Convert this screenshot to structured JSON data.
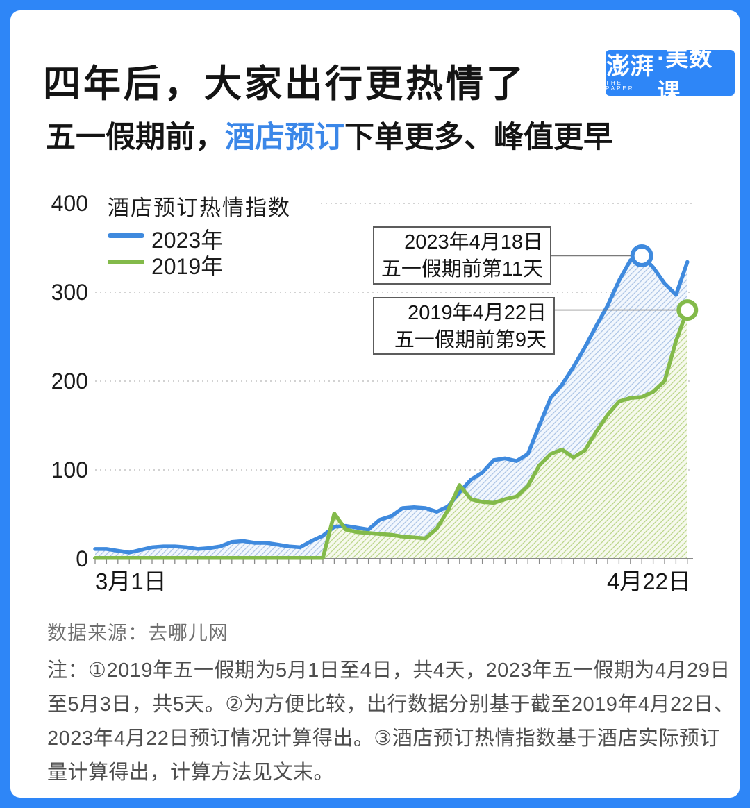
{
  "frame_color": "#2e86f7",
  "accent_color": "#3b87e8",
  "header": {
    "title": "四年后，大家出行更热情了",
    "subtitle_pre": "五一假期前，",
    "subtitle_highlight": "酒店预订",
    "subtitle_post": "下单更多、峰值更早",
    "logo_main": "澎湃",
    "logo_sub": "THE PAPER",
    "logo_suffix": "·美数课"
  },
  "chart_data": {
    "type": "area",
    "title": "酒店预订热情指数",
    "x_axis": {
      "start_label": "3月1日",
      "end_label": "4月22日",
      "days": 53
    },
    "y_axis": {
      "ticks": [
        0,
        100,
        200,
        300,
        400
      ],
      "max": 400
    },
    "grid": "dotted-horizontal",
    "legend_position": "top-left",
    "series": [
      {
        "name": "2023年",
        "color": "#3f8ade",
        "fill_hatch": "#aec6e6",
        "values": [
          11,
          11,
          9,
          7,
          10,
          13,
          14,
          14,
          13,
          11,
          12,
          14,
          19,
          20,
          18,
          18,
          16,
          14,
          13,
          20,
          26,
          36,
          37,
          35,
          33,
          44,
          48,
          57,
          58,
          57,
          53,
          59,
          75,
          89,
          97,
          111,
          113,
          110,
          118,
          150,
          181,
          196,
          216,
          238,
          262,
          285,
          313,
          336,
          341,
          328,
          310,
          297,
          334
        ]
      },
      {
        "name": "2019年",
        "color": "#83ba4a",
        "fill_hatch": "#bcd78c",
        "values": [
          1,
          1,
          1,
          1,
          1,
          1,
          1,
          1,
          1,
          1,
          1,
          1,
          1,
          1,
          1,
          1,
          1,
          1,
          1,
          1,
          1,
          51,
          33,
          30,
          29,
          28,
          27,
          25,
          24,
          23,
          34,
          55,
          83,
          67,
          64,
          63,
          67,
          70,
          82,
          105,
          118,
          123,
          114,
          122,
          143,
          162,
          177,
          181,
          182,
          188,
          200,
          245,
          280
        ]
      }
    ],
    "annotations": [
      {
        "series": "2023年",
        "date_label": "2023年4月18日",
        "note_label": "五一假期前第11天",
        "day_index": 48,
        "value": 341
      },
      {
        "series": "2019年",
        "date_label": "2019年4月22日",
        "note_label": "五一假期前第9天",
        "day_index": 52,
        "value": 280
      }
    ]
  },
  "footer": {
    "source": "数据来源：去哪儿网",
    "notes_lines": [
      "注：①2019年五一假期为5月1日至4日，共4天，2023年五一假期为4月29日",
      "至5月3日，共5天。②为方便比较，出行数据分别基于截至2019年4月22日、",
      "2023年4月22日预订情况计算得出。③酒店预订热情指数基于酒店实际预订",
      "量计算得出，计算方法见文末。"
    ]
  }
}
